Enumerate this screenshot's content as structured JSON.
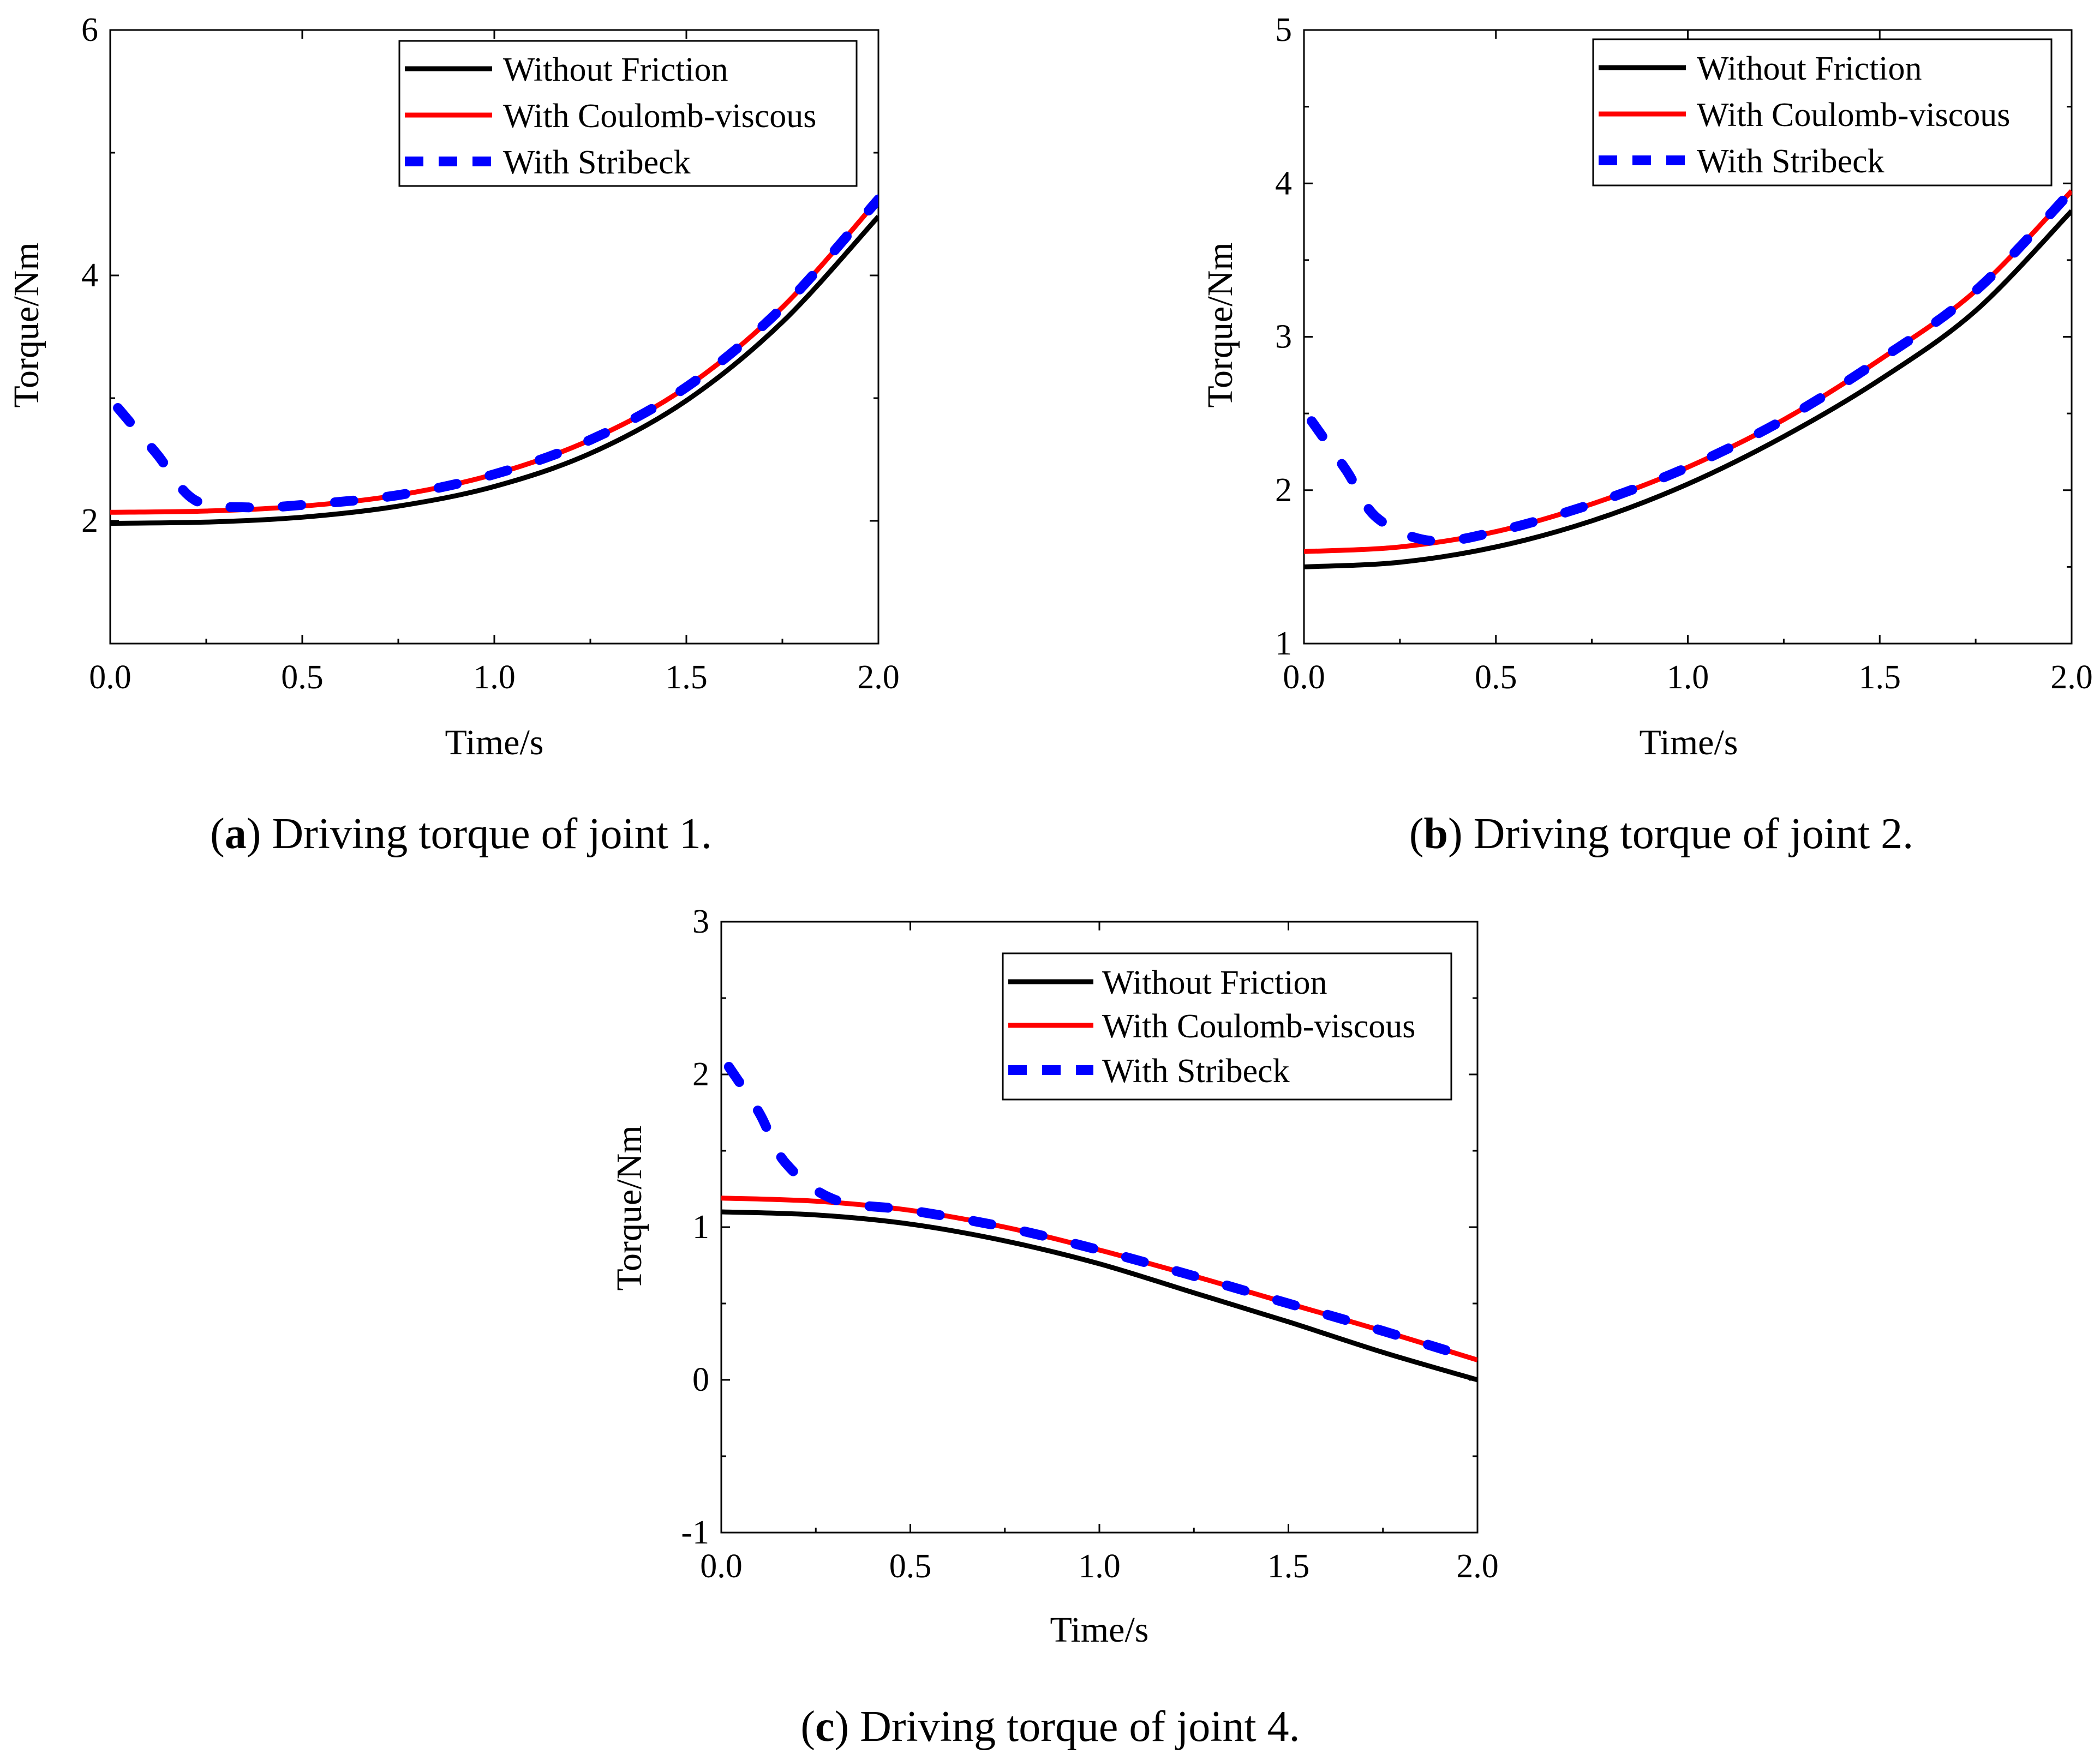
{
  "chart_data": [
    {
      "type": "line",
      "caption_letter": "a",
      "caption_text": "Driving torque of joint 1.",
      "xlabel": "Time/s",
      "ylabel": "Torque/Nm",
      "xlim": [
        0,
        2
      ],
      "ylim": [
        1,
        6
      ],
      "xticks": [
        "0.0",
        "0.5",
        "1.0",
        "1.5",
        "2.0"
      ],
      "xtick_values": [
        0,
        0.5,
        1.0,
        1.5,
        2.0
      ],
      "yticks": [
        "2",
        "4",
        "6"
      ],
      "ytick_values": [
        2,
        4,
        6
      ],
      "legend_position": "top-right",
      "series": [
        {
          "name": "Without Friction",
          "style": "solid",
          "color": "#000000",
          "x": [
            0,
            0.25,
            0.5,
            0.75,
            1.0,
            1.25,
            1.5,
            1.75,
            2.0
          ],
          "y": [
            1.98,
            1.99,
            2.03,
            2.12,
            2.28,
            2.55,
            2.98,
            3.62,
            4.48
          ]
        },
        {
          "name": "With Coulomb-viscous",
          "style": "solid",
          "color": "#ff0000",
          "x": [
            0,
            0.25,
            0.5,
            0.75,
            1.0,
            1.25,
            1.5,
            1.75,
            2.0
          ],
          "y": [
            2.07,
            2.08,
            2.12,
            2.21,
            2.38,
            2.66,
            3.09,
            3.74,
            4.62
          ]
        },
        {
          "name": "With Stribeck",
          "style": "dashed",
          "color": "#0000ff",
          "x": [
            0.02,
            0.12,
            0.22,
            0.36,
            0.5,
            0.75,
            1.0,
            1.25,
            1.5,
            1.75,
            2.0
          ],
          "y": [
            2.92,
            2.55,
            2.17,
            2.11,
            2.13,
            2.21,
            2.38,
            2.66,
            3.09,
            3.74,
            4.62
          ]
        }
      ]
    },
    {
      "type": "line",
      "caption_letter": "b",
      "caption_text": "Driving torque of joint 2.",
      "xlabel": "Time/s",
      "ylabel": "Torque/Nm",
      "xlim": [
        0,
        2
      ],
      "ylim": [
        1,
        5
      ],
      "xticks": [
        "0.0",
        "0.5",
        "1.0",
        "1.5",
        "2.0"
      ],
      "xtick_values": [
        0,
        0.5,
        1.0,
        1.5,
        2.0
      ],
      "yticks": [
        "1",
        "2",
        "3",
        "4",
        "5"
      ],
      "ytick_values": [
        1,
        2,
        3,
        4,
        5
      ],
      "legend_position": "top-right",
      "series": [
        {
          "name": "Without Friction",
          "style": "solid",
          "color": "#000000",
          "x": [
            0,
            0.25,
            0.5,
            0.75,
            1.0,
            1.25,
            1.5,
            1.75,
            2.0
          ],
          "y": [
            1.5,
            1.53,
            1.63,
            1.8,
            2.04,
            2.35,
            2.72,
            3.17,
            3.82
          ]
        },
        {
          "name": "With Coulomb-viscous",
          "style": "solid",
          "color": "#ff0000",
          "x": [
            0,
            0.25,
            0.5,
            0.75,
            1.0,
            1.25,
            1.5,
            1.75,
            2.0
          ],
          "y": [
            1.6,
            1.63,
            1.73,
            1.91,
            2.15,
            2.46,
            2.85,
            3.3,
            3.95
          ]
        },
        {
          "name": "With Stribeck",
          "style": "dashed",
          "color": "#0000ff",
          "x": [
            0.02,
            0.11,
            0.19,
            0.33,
            0.5,
            0.75,
            1.0,
            1.25,
            1.5,
            1.75,
            2.0
          ],
          "y": [
            2.45,
            2.13,
            1.82,
            1.67,
            1.73,
            1.91,
            2.15,
            2.46,
            2.85,
            3.3,
            3.95
          ]
        }
      ]
    },
    {
      "type": "line",
      "caption_letter": "c",
      "caption_text": "Driving torque of joint 4.",
      "xlabel": "Time/s",
      "ylabel": "Torque/Nm",
      "xlim": [
        0,
        2
      ],
      "ylim": [
        -1,
        3
      ],
      "xticks": [
        "0.0",
        "0.5",
        "1.0",
        "1.5",
        "2.0"
      ],
      "xtick_values": [
        0,
        0.5,
        1.0,
        1.5,
        2.0
      ],
      "yticks": [
        "-1",
        "0",
        "1",
        "2",
        "3"
      ],
      "ytick_values": [
        -1,
        0,
        1,
        2,
        3
      ],
      "legend_position": "top-right",
      "series": [
        {
          "name": "Without Friction",
          "style": "solid",
          "color": "#000000",
          "x": [
            0,
            0.25,
            0.5,
            0.75,
            1.0,
            1.25,
            1.5,
            1.75,
            2.0
          ],
          "y": [
            1.1,
            1.08,
            1.02,
            0.91,
            0.76,
            0.57,
            0.38,
            0.18,
            0.0
          ]
        },
        {
          "name": "With Coulomb-viscous",
          "style": "solid",
          "color": "#ff0000",
          "x": [
            0,
            0.25,
            0.5,
            0.75,
            1.0,
            1.25,
            1.5,
            1.75,
            2.0
          ],
          "y": [
            1.19,
            1.17,
            1.11,
            1.0,
            0.85,
            0.68,
            0.5,
            0.32,
            0.13
          ]
        },
        {
          "name": "With Stribeck",
          "style": "dashed",
          "color": "#0000ff",
          "x": [
            0.02,
            0.1,
            0.17,
            0.3,
            0.5,
            0.75,
            1.0,
            1.25,
            1.5,
            1.75,
            2.0
          ],
          "y": [
            2.05,
            1.75,
            1.42,
            1.18,
            1.11,
            1.0,
            0.85,
            0.68,
            0.5,
            0.32,
            0.13
          ]
        }
      ]
    }
  ]
}
